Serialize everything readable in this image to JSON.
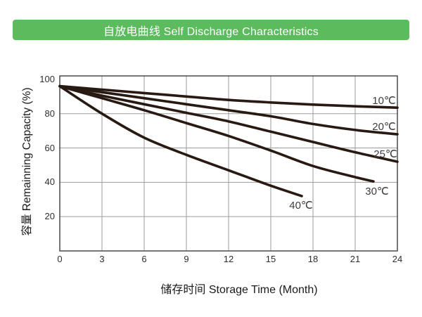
{
  "header": {
    "title": "自放电曲线 Self Discharge Characteristics",
    "background_color": "#5cbb5c",
    "text_color": "#ffffff"
  },
  "chart_data": {
    "type": "line",
    "title": "自放电曲线 Self Discharge Characteristics",
    "xlabel": "储存时间 Storage Time (Month)",
    "ylabel": "容量 Remainning Capacity (%)",
    "xlim": [
      0,
      24
    ],
    "ylim": [
      0,
      102
    ],
    "x_ticks": [
      0,
      3,
      6,
      9,
      12,
      15,
      18,
      21,
      24
    ],
    "y_ticks": [
      100,
      80,
      60,
      40,
      20
    ],
    "grid": true,
    "legend_position": "inline-curve-labels",
    "line_color": "#281a12",
    "gridline_color": "#9b9b9b",
    "axis_border_color": "#4a4a4a",
    "series": [
      {
        "name": "10C",
        "label": "10℃",
        "x": [
          0,
          3,
          6,
          9,
          12,
          15,
          18,
          21,
          24
        ],
        "values": [
          96,
          94,
          92,
          90,
          88,
          86.5,
          85.3,
          84.3,
          83.5
        ]
      },
      {
        "name": "20C",
        "label": "20℃",
        "x": [
          0,
          3,
          6,
          9,
          12,
          15,
          18,
          21,
          24
        ],
        "values": [
          96,
          92.5,
          89,
          85.5,
          82,
          78.5,
          74,
          70.5,
          68
        ]
      },
      {
        "name": "25C",
        "label": "25℃",
        "x": [
          0,
          3,
          6,
          9,
          12,
          15,
          18,
          21,
          24
        ],
        "values": [
          96,
          90.5,
          85.5,
          80.5,
          75.5,
          69.5,
          63.5,
          57.5,
          52
        ]
      },
      {
        "name": "30C",
        "label": "30℃",
        "x": [
          0,
          3,
          6,
          9,
          12,
          15,
          18,
          21,
          22.3
        ],
        "values": [
          96,
          89,
          82,
          74.5,
          67,
          58.5,
          49.5,
          43,
          40.5
        ]
      },
      {
        "name": "40C",
        "label": "40℃",
        "x": [
          0,
          3,
          6,
          9,
          12,
          15,
          17.2
        ],
        "values": [
          96,
          80,
          66,
          56,
          47,
          38,
          32
        ]
      }
    ]
  }
}
